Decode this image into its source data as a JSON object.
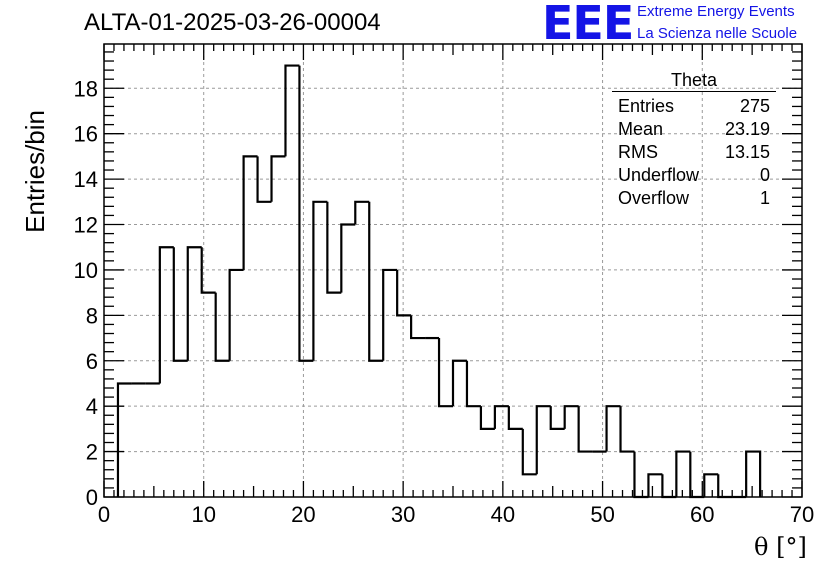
{
  "header": {
    "title": "ALTA-01-2025-03-26-00004",
    "logo_text": "EEE",
    "logo_line1": "Extreme Energy Events",
    "logo_line2": "La Scienza nelle Scuole"
  },
  "stats_box": {
    "title": "Theta",
    "rows": [
      {
        "label": "Entries",
        "value": "275"
      },
      {
        "label": "Mean",
        "value": "23.19"
      },
      {
        "label": "RMS",
        "value": "13.15"
      },
      {
        "label": "Underflow",
        "value": "0"
      },
      {
        "label": "Overflow",
        "value": "1"
      }
    ]
  },
  "colors": {
    "logo": "#1414e6",
    "line": "#000000",
    "grid": "#9a9a9a"
  },
  "chart_data": {
    "type": "histogram",
    "title": "ALTA-01-2025-03-26-00004",
    "xlabel": "θ [°]",
    "ylabel": "Entries/bin",
    "xlim": [
      0,
      70
    ],
    "ylim": [
      0,
      19.95
    ],
    "bin_edges": [
      1.4,
      2.8,
      4.2,
      5.6,
      7.0,
      8.4,
      9.8,
      11.2,
      12.6,
      14.0,
      15.4,
      16.8,
      18.2,
      19.6,
      21.0,
      22.4,
      23.8,
      25.2,
      26.6,
      28.0,
      29.4,
      30.8,
      32.2,
      33.6,
      35.0,
      36.4,
      37.8,
      39.2,
      40.6,
      42.0,
      43.4,
      44.8,
      46.2,
      47.6,
      49.0,
      50.4,
      51.8,
      53.2,
      54.6,
      56.0,
      57.4,
      58.8,
      60.2,
      61.6,
      63.0,
      64.4,
      65.8
    ],
    "counts": [
      5,
      5,
      5,
      11,
      6,
      11,
      9,
      6,
      10,
      15,
      13,
      15,
      19,
      6,
      13,
      9,
      12,
      13,
      6,
      10,
      8,
      7,
      7,
      4,
      6,
      4,
      3,
      4,
      3,
      1,
      4,
      3,
      4,
      2,
      2,
      4,
      2,
      0,
      1,
      0,
      2,
      0,
      1,
      0,
      0,
      2
    ],
    "x_ticks": [
      0,
      10,
      20,
      30,
      40,
      50,
      60,
      70
    ],
    "y_ticks": [
      0,
      2,
      4,
      6,
      8,
      10,
      12,
      14,
      16,
      18
    ],
    "grid": true,
    "legend": "top-right"
  }
}
